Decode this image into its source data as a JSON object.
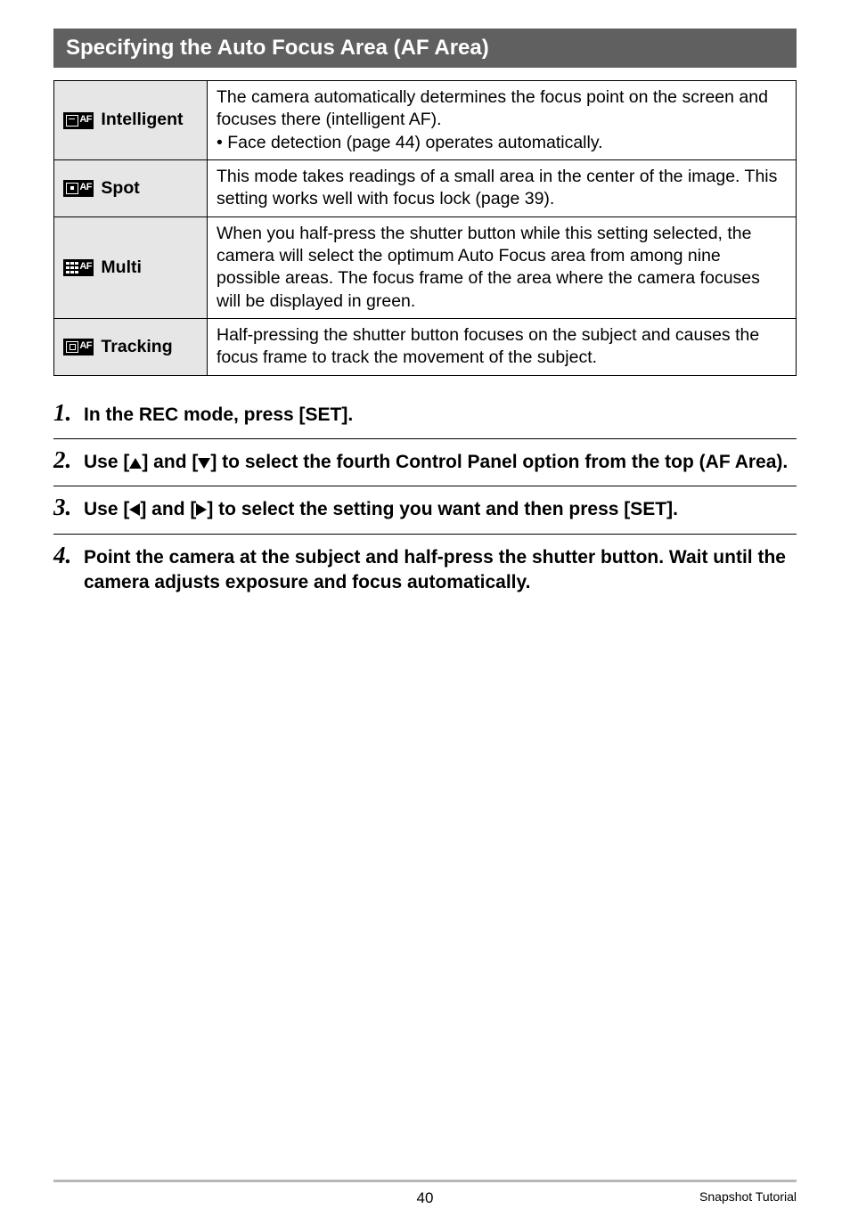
{
  "section_title": "Specifying the Auto Focus Area (AF Area)",
  "table": {
    "rows": [
      {
        "mode_label": "Intelligent",
        "icon_type": "intelligent",
        "desc_lines": [
          "The camera automatically determines the focus point on the screen and focuses there (intelligent AF).",
          "Face detection (page 44) operates automatically."
        ],
        "second_line_bullet": true
      },
      {
        "mode_label": "Spot",
        "icon_type": "spot",
        "desc_lines": [
          "This mode takes readings of a small area in the center of the image. This setting works well with focus lock (page 39)."
        ],
        "second_line_bullet": false
      },
      {
        "mode_label": "Multi",
        "icon_type": "multi",
        "desc_lines": [
          "When you half-press the shutter button while this setting selected, the camera will select the optimum Auto Focus area from among nine possible areas. The focus frame of the area where the camera focuses will be displayed in green."
        ],
        "second_line_bullet": false
      },
      {
        "mode_label": "Tracking",
        "icon_type": "tracking",
        "desc_lines": [
          "Half-pressing the shutter button focuses on the subject and causes the focus frame to track the movement of the subject."
        ],
        "second_line_bullet": false
      }
    ]
  },
  "steps": [
    {
      "num": "1.",
      "text_pre": "In the REC mode, press [SET]."
    },
    {
      "num": "2.",
      "text_pre": "Use [",
      "arrows": [
        "up"
      ],
      "text_mid": "] and [",
      "arrows2": [
        "down"
      ],
      "text_post": "] to select the fourth Control Panel option from the top (AF Area)."
    },
    {
      "num": "3.",
      "text_pre": "Use [",
      "arrows": [
        "left"
      ],
      "text_mid": "] and [",
      "arrows2": [
        "right"
      ],
      "text_post": "] to select the setting you want and then press [SET]."
    },
    {
      "num": "4.",
      "text_pre": "Point the camera at the subject and half-press the shutter button. Wait until the camera adjusts exposure and focus automatically."
    }
  ],
  "footer": {
    "page_number": "40",
    "label": "Snapshot Tutorial"
  },
  "colors": {
    "header_bg": "#606060",
    "header_text": "#ffffff",
    "mode_cell_bg": "#e6e6e6",
    "border": "#000000",
    "footer_rule": "#b8b8b8"
  }
}
